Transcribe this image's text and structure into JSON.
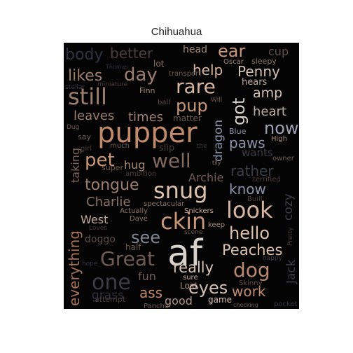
{
  "title": "Chihuahua",
  "palette": {
    "background": "#050404",
    "page": "#ffffff"
  },
  "words": [
    {
      "text": "af",
      "color": "#d8d2cc"
    },
    {
      "text": "pupper",
      "color": "#c08a6c"
    },
    {
      "text": "snug",
      "color": "#dcc1ad"
    },
    {
      "text": "ckin",
      "color": "#c99778"
    },
    {
      "text": "look",
      "color": "#d5b6a2"
    },
    {
      "text": "still",
      "color": "#9c7e6e"
    },
    {
      "text": "rare",
      "color": "#d5b6a2"
    },
    {
      "text": "well",
      "color": "#7f6a60"
    },
    {
      "text": "Great",
      "color": "#6f5d55"
    },
    {
      "text": "one",
      "color": "#3b3d46"
    },
    {
      "text": "hello",
      "color": "#dcc1ad"
    },
    {
      "text": "dog",
      "color": "#b98a71"
    },
    {
      "text": "Peaches",
      "color": "#dcc1ad"
    },
    {
      "text": "Penny",
      "color": "#d3c2b5"
    },
    {
      "text": "likes",
      "color": "#9c7e6e"
    },
    {
      "text": "day",
      "color": "#9c7e6e"
    },
    {
      "text": "pet",
      "color": "#c99778"
    },
    {
      "text": "ear",
      "color": "#c99778"
    },
    {
      "text": "pup",
      "color": "#c99778"
    },
    {
      "text": "got",
      "color": "#d8d2cc"
    },
    {
      "text": "now",
      "color": "#9aa2b3"
    },
    {
      "text": "paws",
      "color": "#8a93a8"
    },
    {
      "text": "rather",
      "color": "#3b3d46"
    },
    {
      "text": "know",
      "color": "#8a93a8"
    },
    {
      "text": "tongue",
      "color": "#9c7e6e"
    },
    {
      "text": "Charlie",
      "color": "#8c7366"
    },
    {
      "text": "Archie",
      "color": "#6f5d55"
    },
    {
      "text": "West",
      "color": "#c7ab99"
    },
    {
      "text": "see",
      "color": "#7f8593"
    },
    {
      "text": "really",
      "color": "#d8c5b8"
    },
    {
      "text": "eyes",
      "color": "#d3c2b5"
    },
    {
      "text": "work",
      "color": "#c08a6c"
    },
    {
      "text": "ass",
      "color": "#c08a6c"
    },
    {
      "text": "everything",
      "color": "#a57358"
    },
    {
      "text": "body",
      "color": "#2f3242"
    },
    {
      "text": "better",
      "color": "#4b3e3c"
    },
    {
      "text": "help",
      "color": "#d5b6a2"
    },
    {
      "text": "heart",
      "color": "#bfaea0"
    },
    {
      "text": "amp",
      "color": "#d3c2b5"
    },
    {
      "text": "leaves",
      "color": "#9c7e6e"
    },
    {
      "text": "times",
      "color": "#9c7e6e"
    },
    {
      "text": "dragon",
      "color": "#8a93a8"
    },
    {
      "text": "hug",
      "color": "#a58b7c"
    },
    {
      "text": "taking",
      "color": "#7c655a"
    },
    {
      "text": "doggo",
      "color": "#5d4e48"
    },
    {
      "text": "fun",
      "color": "#6f5d55"
    },
    {
      "text": "grass",
      "color": "#2f3242"
    },
    {
      "text": "good",
      "color": "#b09585"
    },
    {
      "text": "game",
      "color": "#d8c5b8"
    },
    {
      "text": "cozy",
      "color": "#3b3d46"
    },
    {
      "text": "Jack",
      "color": "#3b3d46"
    },
    {
      "text": "wants",
      "color": "#3b3d46"
    },
    {
      "text": "cup",
      "color": "#5d4e48"
    },
    {
      "text": "head",
      "color": "#a58b7c"
    },
    {
      "text": "lot",
      "color": "#8c7366"
    },
    {
      "text": "hears",
      "color": "#bfaea0"
    },
    {
      "text": "Oscar",
      "color": "#a58b7c"
    },
    {
      "text": "sleepy",
      "color": "#8c7366"
    },
    {
      "text": "Lost",
      "color": "#a58b7c"
    },
    {
      "text": "sure",
      "color": "#c7ab99"
    },
    {
      "text": "Blue",
      "color": "#8a93a8"
    },
    {
      "text": "High",
      "color": "#a58b7c"
    },
    {
      "text": "owner",
      "color": "#6f5d55"
    },
    {
      "text": "terrified",
      "color": "#4b3e3c"
    },
    {
      "text": "Built",
      "color": "#4b3e3c"
    },
    {
      "text": "Pretty",
      "color": "#4b3e3c"
    },
    {
      "text": "keep",
      "color": "#a58b7c"
    },
    {
      "text": "Dave",
      "color": "#8c7366"
    },
    {
      "text": "half",
      "color": "#6f5d55"
    },
    {
      "text": "Finn",
      "color": "#a58b7c"
    },
    {
      "text": "transport",
      "color": "#6f5d55"
    },
    {
      "text": "matter",
      "color": "#6f5d55"
    },
    {
      "text": "ball",
      "color": "#5d4e48"
    },
    {
      "text": "Will",
      "color": "#6f5d55"
    },
    {
      "text": "slip",
      "color": "#4b3e3c"
    },
    {
      "text": "the",
      "color": "#3b3d46"
    },
    {
      "text": "tily",
      "color": "#8c7366"
    },
    {
      "text": "super",
      "color": "#6f5d55"
    },
    {
      "text": "ambition",
      "color": "#4b3e3c"
    },
    {
      "text": "much",
      "color": "#6f5d55"
    },
    {
      "text": "girl",
      "color": "#4b3e3c"
    },
    {
      "text": "say",
      "color": "#6f5d55"
    },
    {
      "text": "Dug",
      "color": "#6f5d55"
    },
    {
      "text": "miniature",
      "color": "#4b3e3c"
    },
    {
      "text": "stellar",
      "color": "#3b3d46"
    },
    {
      "text": "Thomas",
      "color": "#2f3242"
    },
    {
      "text": "spectacular",
      "color": "#8c7366"
    },
    {
      "text": "Actually",
      "color": "#8c7366"
    },
    {
      "text": "Snickers",
      "color": "#c7ab99"
    },
    {
      "text": "Loves",
      "color": "#4b3e3c"
    },
    {
      "text": "scene",
      "color": "#6f5d55"
    },
    {
      "text": "hope",
      "color": "#2f3242"
    },
    {
      "text": "happy",
      "color": "#3b3d46"
    },
    {
      "text": "Skinny",
      "color": "#5d4e48"
    },
    {
      "text": "attempt",
      "color": "#4b3e3c"
    },
    {
      "text": "Pancho",
      "color": "#6f5d55"
    },
    {
      "text": "checking",
      "color": "#6f5d55"
    },
    {
      "text": "pocket",
      "color": "#2f3242"
    }
  ]
}
